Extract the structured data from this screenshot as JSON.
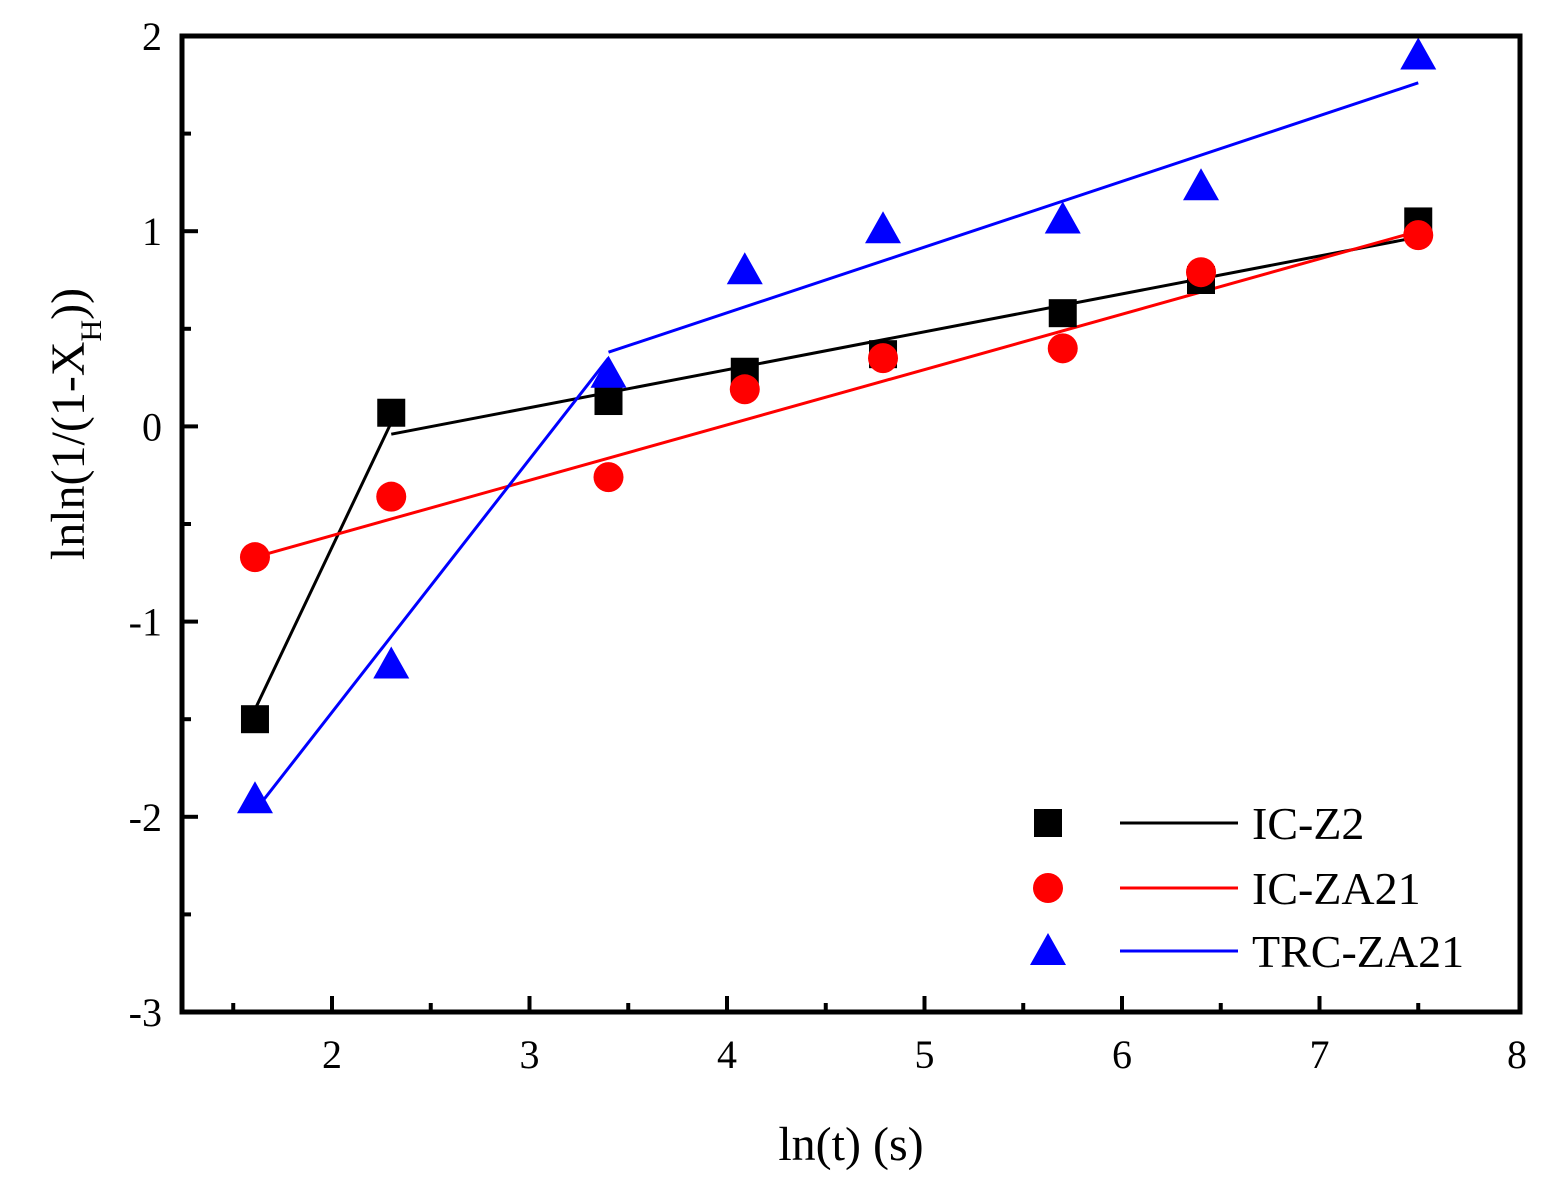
{
  "chart_data": {
    "type": "scatter",
    "title": "",
    "xlabel": "ln(t) (s)",
    "ylabel": "lnln(1/(1-X",
    "ylabel_subscript": "H",
    "ylabel_suffix": "))",
    "xlim": [
      1.25,
      8
    ],
    "ylim": [
      -3,
      2
    ],
    "xticks": [
      2,
      3,
      4,
      5,
      6,
      7,
      8
    ],
    "yticks": [
      -3,
      -2,
      -1,
      0,
      1,
      2
    ],
    "xtick_labels": [
      "2",
      "3",
      "4",
      "5",
      "6",
      "7",
      "8"
    ],
    "ytick_labels": [
      "-3",
      "-2",
      "-1",
      "0",
      "1",
      "2"
    ],
    "grid": false,
    "legend_position": "bottom-right",
    "series": [
      {
        "name": "IC-Z2",
        "color": "#000000",
        "marker": "square",
        "points": [
          {
            "x": 1.61,
            "y": -1.5
          },
          {
            "x": 2.3,
            "y": 0.07
          },
          {
            "x": 3.4,
            "y": 0.13
          },
          {
            "x": 4.09,
            "y": 0.28
          },
          {
            "x": 4.79,
            "y": 0.37
          },
          {
            "x": 5.7,
            "y": 0.58
          },
          {
            "x": 6.4,
            "y": 0.75
          },
          {
            "x": 7.5,
            "y": 1.05
          }
        ],
        "fits": [
          {
            "x": [
              1.61,
              2.3
            ],
            "y": [
              -1.45,
              0.02
            ]
          },
          {
            "x": [
              2.3,
              7.5
            ],
            "y": [
              -0.04,
              0.97
            ]
          }
        ]
      },
      {
        "name": "IC-ZA21",
        "color": "#ff0000",
        "marker": "circle",
        "points": [
          {
            "x": 1.61,
            "y": -0.67
          },
          {
            "x": 2.3,
            "y": -0.36
          },
          {
            "x": 3.4,
            "y": -0.26
          },
          {
            "x": 4.09,
            "y": 0.19
          },
          {
            "x": 4.79,
            "y": 0.35
          },
          {
            "x": 5.7,
            "y": 0.4
          },
          {
            "x": 6.4,
            "y": 0.79
          },
          {
            "x": 7.5,
            "y": 0.98
          }
        ],
        "fits": [
          {
            "x": [
              1.61,
              7.5
            ],
            "y": [
              -0.67,
              1.0
            ]
          }
        ]
      },
      {
        "name": "TRC-ZA21",
        "color": "#0000ff",
        "marker": "triangle",
        "points": [
          {
            "x": 1.61,
            "y": -1.91
          },
          {
            "x": 2.3,
            "y": -1.22
          },
          {
            "x": 3.4,
            "y": 0.27
          },
          {
            "x": 4.09,
            "y": 0.8
          },
          {
            "x": 4.79,
            "y": 1.01
          },
          {
            "x": 5.7,
            "y": 1.06
          },
          {
            "x": 6.4,
            "y": 1.23
          },
          {
            "x": 7.5,
            "y": 1.9
          }
        ],
        "fits": [
          {
            "x": [
              1.61,
              3.4
            ],
            "y": [
              -1.97,
              0.35
            ]
          },
          {
            "x": [
              3.4,
              7.5
            ],
            "y": [
              0.38,
              1.76
            ]
          }
        ]
      }
    ]
  }
}
